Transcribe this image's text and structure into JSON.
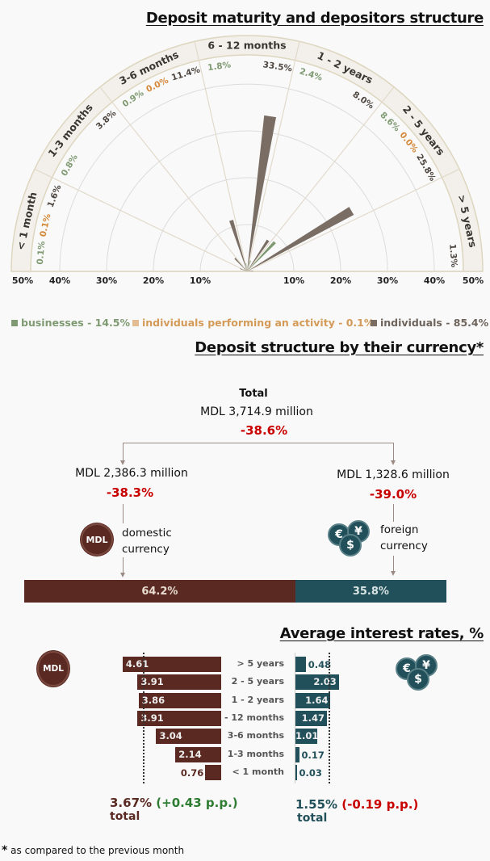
{
  "maturity": {
    "title": "Deposit maturity and depositors structure",
    "legend": [
      {
        "label": "businesses - 14.5%",
        "color": "#7f9a72"
      },
      {
        "label": "individuals performing an activity - 0.1%",
        "color": "#d9a36b"
      },
      {
        "label": "individuals - 85.4%",
        "color": "#7a6e64"
      }
    ]
  },
  "chart_data": {
    "type": "polar-bar",
    "title": "Deposit maturity and depositors structure",
    "radial_ticks": [
      "50%",
      "40%",
      "30%",
      "20%",
      "10%",
      "10%",
      "20%",
      "30%",
      "40%",
      "50%"
    ],
    "radial_max": 50,
    "series_colors": {
      "businesses": "#7f9a72",
      "activity": "#d9a36b",
      "individuals": "#7a6e64"
    },
    "sectors": [
      {
        "label": "< 1 month",
        "values": [
          {
            "s": "businesses",
            "v": 0.1,
            "t": "0.1%"
          },
          {
            "s": "activity",
            "v": 0.1,
            "t": "0.1%"
          },
          {
            "s": "individuals",
            "v": 1.6,
            "t": "1.6%"
          }
        ]
      },
      {
        "label": "1-3 months",
        "values": [
          {
            "s": "businesses",
            "v": 0.8,
            "t": "0.8%"
          },
          {
            "s": "individuals",
            "v": 3.8,
            "t": "3.8%"
          }
        ]
      },
      {
        "label": "3-6 months",
        "values": [
          {
            "s": "businesses",
            "v": 0.9,
            "t": "0.9%"
          },
          {
            "s": "activity",
            "v": 0.0,
            "t": "0.0%"
          },
          {
            "s": "individuals",
            "v": 11.4,
            "t": "11.4%"
          }
        ]
      },
      {
        "label": "6 - 12 months",
        "values": [
          {
            "s": "businesses",
            "v": 1.8,
            "t": "1.8%"
          },
          {
            "s": "individuals",
            "v": 33.5,
            "t": "33.5%"
          }
        ]
      },
      {
        "label": "1 - 2 years",
        "values": [
          {
            "s": "businesses",
            "v": 2.4,
            "t": "2.4%"
          },
          {
            "s": "individuals",
            "v": 8.0,
            "t": "8.0%"
          }
        ]
      },
      {
        "label": "2 - 5 years",
        "values": [
          {
            "s": "businesses",
            "v": 8.6,
            "t": "8.6%"
          },
          {
            "s": "activity",
            "v": 0.0,
            "t": "0.0%"
          },
          {
            "s": "individuals",
            "v": 25.8,
            "t": "25.8%"
          }
        ]
      },
      {
        "label": "> 5 years",
        "values": [
          {
            "s": "individuals",
            "v": 1.3,
            "t": "1.3%"
          }
        ]
      }
    ]
  },
  "currency": {
    "title": "Deposit structure by their currency*",
    "total_label": "Total",
    "total_amount": "MDL 3,714.9 million",
    "total_change": "-38.6%",
    "domestic_amount": "MDL 2,386.3 million",
    "domestic_change": "-38.3%",
    "domestic_label_1": "domestic",
    "domestic_label_2": "currency",
    "foreign_amount": "MDL 1,328.6 million",
    "foreign_change": "-39.0%",
    "foreign_label_1": "foreign",
    "foreign_label_2": "currency",
    "domestic_share": "64.2%",
    "foreign_share": "35.8%",
    "domestic_share_value": 64.2,
    "mdl_icon": "MDL",
    "fx_icons": [
      "€",
      "¥",
      "$"
    ]
  },
  "rates": {
    "title": "Average interest rates, %",
    "rows": [
      {
        "label": "> 5 years",
        "mdl": 4.61,
        "mdl_t": "4.61",
        "fx": 0.48,
        "fx_t": "0.48"
      },
      {
        "label": "2 - 5 years",
        "mdl": 3.91,
        "mdl_t": "3.91",
        "fx": 2.03,
        "fx_t": "2.03"
      },
      {
        "label": "1 - 2 years",
        "mdl": 3.86,
        "mdl_t": "3.86",
        "fx": 1.64,
        "fx_t": "1.64"
      },
      {
        "label": "6 - 12 months",
        "mdl": 3.91,
        "mdl_t": "3.91",
        "fx": 1.47,
        "fx_t": "1.47"
      },
      {
        "label": "3-6 months",
        "mdl": 3.04,
        "mdl_t": "3.04",
        "fx": 1.01,
        "fx_t": "1.01"
      },
      {
        "label": "1-3 months",
        "mdl": 2.14,
        "mdl_t": "2.14",
        "fx": 0.17,
        "fx_t": "0.17"
      },
      {
        "label": "< 1 month",
        "mdl": 0.76,
        "mdl_t": "0.76",
        "fx": 0.03,
        "fx_t": "0.03"
      }
    ],
    "mdl_total_value": 3.67,
    "fx_total_value": 1.55,
    "mdl_total": "3.67%",
    "mdl_change": "(+0.43 p.p.)",
    "fx_total": "1.55%",
    "fx_change": "(-0.19 p.p.)",
    "total_word": "total"
  },
  "footnote": {
    "mark": "*",
    "text": " as compared to the previous month"
  }
}
